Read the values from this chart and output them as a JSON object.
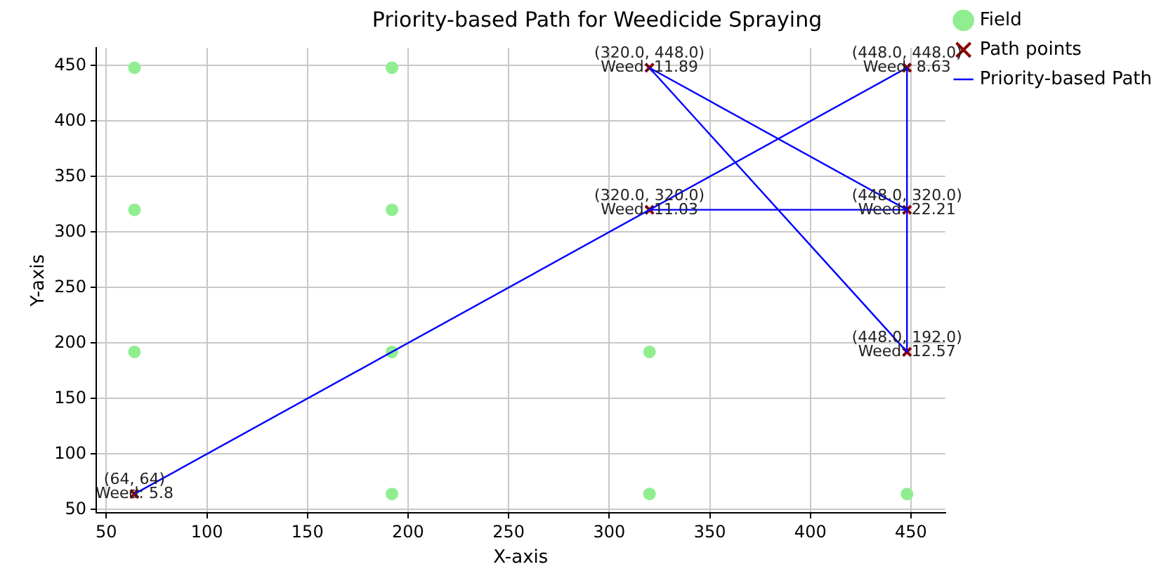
{
  "chart_data": {
    "type": "scatter",
    "title": "Priority-based Path for Weedicide Spraying",
    "xlabel": "X-axis",
    "ylabel": "Y-axis",
    "xlim": [
      45,
      467
    ],
    "ylim": [
      47,
      466
    ],
    "xticks": [
      50,
      100,
      150,
      200,
      250,
      300,
      350,
      400,
      450
    ],
    "yticks": [
      50,
      100,
      150,
      200,
      250,
      300,
      350,
      400,
      450
    ],
    "grid": true,
    "legend": "top right",
    "series": [
      {
        "name": "Field",
        "marker": "circle",
        "color": "#90ee90",
        "x": [
          64,
          192,
          64,
          192,
          64,
          192,
          320,
          192,
          320,
          448
        ],
        "values": [
          448,
          448,
          320,
          320,
          192,
          192,
          192,
          64,
          64,
          64
        ]
      },
      {
        "name": "Path points",
        "marker": "cross",
        "color": "#8b0000",
        "x": [
          64,
          448,
          448,
          320,
          448,
          320
        ],
        "values": [
          64,
          448,
          320,
          448,
          192,
          320
        ]
      },
      {
        "name": "Priority-based Path",
        "type": "line",
        "marker": "none",
        "line_style": "solid",
        "color": "#0000ff",
        "x": [
          64,
          448,
          448,
          320,
          448,
          448,
          320
        ],
        "values": [
          64,
          448,
          320,
          448,
          192,
          320,
          320
        ]
      }
    ],
    "annotations": [
      {
        "text": "(64, 64)\nWeed: 5.8",
        "x": 64,
        "y": 64
      },
      {
        "text": "(448.0, 448.0)\nWeed: 8.63",
        "x": 448,
        "y": 448
      },
      {
        "text": "(448.0, 320.0)\nWeed: 22.21",
        "x": 448,
        "y": 320
      },
      {
        "text": "(320.0, 448.0)\nWeed: 11.89",
        "x": 320,
        "y": 448
      },
      {
        "text": "(448.0, 192.0)\nWeed: 12.57",
        "x": 448,
        "y": 192
      },
      {
        "text": "(320.0, 320.0)\nWeed: 11.03",
        "x": 320,
        "y": 320
      }
    ]
  }
}
